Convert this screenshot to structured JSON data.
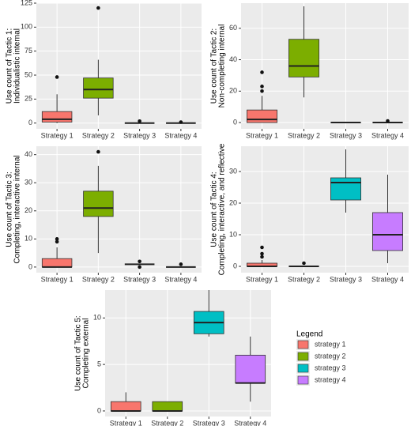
{
  "chart_data": [
    {
      "type": "box",
      "ylabel": [
        "Use count of Tactic 1:",
        "Individualistic internal"
      ],
      "categories": [
        "Strategy 1",
        "Strategy 2",
        "Strategy 3",
        "Strategy 4"
      ],
      "boxes": [
        {
          "min": 0,
          "q1": 1,
          "median": 4,
          "q3": 12,
          "max": 30,
          "outliers": [
            48
          ]
        },
        {
          "min": 8,
          "q1": 26,
          "median": 35,
          "q3": 47,
          "max": 66,
          "outliers": [
            120
          ]
        },
        {
          "min": 0,
          "q1": 0,
          "median": 0,
          "q3": 0,
          "max": 0,
          "outliers": [
            2
          ]
        },
        {
          "min": 0,
          "q1": 0,
          "median": 0,
          "q3": 0,
          "max": 0,
          "outliers": [
            1
          ]
        }
      ],
      "ylim": [
        -6,
        125
      ],
      "yticks": [
        0,
        25,
        50,
        75,
        100,
        125
      ]
    },
    {
      "type": "box",
      "ylabel": [
        "Use count of Tactic 2:",
        "Non-completing internal"
      ],
      "categories": [
        "Strategy 1",
        "Strategy 2",
        "Strategy 3",
        "Strategy 4"
      ],
      "boxes": [
        {
          "min": 0,
          "q1": 0,
          "median": 2,
          "q3": 8,
          "max": 17,
          "outliers": [
            20,
            23,
            32
          ]
        },
        {
          "min": 16,
          "q1": 29,
          "median": 36,
          "q3": 53,
          "max": 74,
          "outliers": []
        },
        {
          "min": 0,
          "q1": 0,
          "median": 0,
          "q3": 0,
          "max": 0,
          "outliers": []
        },
        {
          "min": 0,
          "q1": 0,
          "median": 0,
          "q3": 0,
          "max": 0,
          "outliers": [
            1
          ]
        }
      ],
      "ylim": [
        -4,
        76
      ],
      "yticks": [
        0,
        20,
        40,
        60
      ]
    },
    {
      "type": "box",
      "ylabel": [
        "Use count of Tactic 3:",
        "Completing, interactive internal"
      ],
      "categories": [
        "Strategy 1",
        "Strategy 2",
        "Strategy 3",
        "Strategy 4"
      ],
      "boxes": [
        {
          "min": 0,
          "q1": 0,
          "median": 0,
          "q3": 3,
          "max": 7,
          "outliers": [
            9,
            10
          ]
        },
        {
          "min": 5,
          "q1": 18,
          "median": 21,
          "q3": 27,
          "max": 36,
          "outliers": [
            41
          ]
        },
        {
          "min": 1,
          "q1": 1,
          "median": 1,
          "q3": 1,
          "max": 1,
          "outliers": [
            0,
            2
          ]
        },
        {
          "min": 0,
          "q1": 0,
          "median": 0,
          "q3": 0,
          "max": 0,
          "outliers": [
            1
          ]
        }
      ],
      "ylim": [
        -2,
        43
      ],
      "yticks": [
        0,
        10,
        20,
        30,
        40
      ]
    },
    {
      "type": "box",
      "ylabel": [
        "Use count of Tactic 4:",
        "Completing, interactive, and reflective"
      ],
      "categories": [
        "Strategy 1",
        "Strategy 2",
        "Strategy 3",
        "Strategy 4"
      ],
      "boxes": [
        {
          "min": 0,
          "q1": 0,
          "median": 0,
          "q3": 1,
          "max": 2,
          "outliers": [
            3,
            4,
            6
          ]
        },
        {
          "min": 0,
          "q1": 0,
          "median": 0,
          "q3": 0,
          "max": 0,
          "outliers": [
            1
          ]
        },
        {
          "min": 17,
          "q1": 21,
          "median": 26.5,
          "q3": 28,
          "max": 37,
          "outliers": []
        },
        {
          "min": 1,
          "q1": 5,
          "median": 10,
          "q3": 17,
          "max": 29,
          "outliers": []
        }
      ],
      "ylim": [
        -2,
        38
      ],
      "yticks": [
        0,
        10,
        20,
        30
      ]
    },
    {
      "type": "box",
      "ylabel": [
        "Use count of Tactic 5:",
        "Completing external"
      ],
      "categories": [
        "Strategy 1",
        "Strategy 2",
        "Strategy 3",
        "Strategy 4"
      ],
      "boxes": [
        {
          "min": 0,
          "q1": 0,
          "median": 0,
          "q3": 1,
          "max": 2,
          "outliers": []
        },
        {
          "min": 0,
          "q1": 0,
          "median": 0,
          "q3": 1,
          "max": 1,
          "outliers": []
        },
        {
          "min": 8,
          "q1": 8.3,
          "median": 9.5,
          "q3": 10.7,
          "max": 13,
          "outliers": []
        },
        {
          "min": 1,
          "q1": 3,
          "median": 3,
          "q3": 6,
          "max": 8,
          "outliers": []
        }
      ],
      "ylim": [
        -0.6,
        13
      ],
      "yticks": [
        0,
        5,
        10
      ]
    }
  ],
  "legend": {
    "title": "Legend",
    "entries": [
      {
        "name": "strategy 1",
        "color": "#f8766d"
      },
      {
        "name": "strategy 2",
        "color": "#7cae00"
      },
      {
        "name": "strategy 3",
        "color": "#00bfc4"
      },
      {
        "name": "strategy 4",
        "color": "#c77cff"
      }
    ]
  }
}
